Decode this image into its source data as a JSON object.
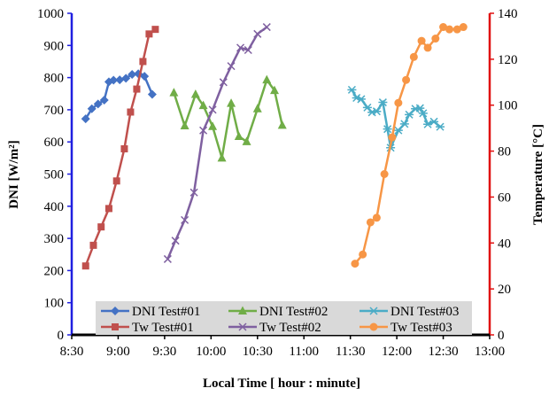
{
  "chart_data": {
    "type": "line",
    "title": "",
    "xlabel": "Local Time [ hour : minute]",
    "ylabel_left": "DNI [W/m²]",
    "ylabel_right": "Temperature  [°C]",
    "x_ticks": [
      "8:30",
      "9:00",
      "9:30",
      "10:00",
      "10:30",
      "11:00",
      "11:30",
      "12:00",
      "12:30",
      "13:00"
    ],
    "x_range": [
      "8:30",
      "13:00"
    ],
    "y_left_ticks": [
      "0",
      "100",
      "200",
      "300",
      "400",
      "500",
      "600",
      "700",
      "800",
      "900",
      "1000"
    ],
    "y_left_range": [
      0,
      1000
    ],
    "y_right_ticks": [
      "0",
      "20",
      "40",
      "60",
      "80",
      "100",
      "120",
      "140"
    ],
    "y_right_range": [
      0,
      140
    ],
    "grid": false,
    "legend_position": "bottom-center",
    "axis_colors": {
      "left": "#1f1fe0",
      "right": "#e01010",
      "bottom": "#000000"
    },
    "series": [
      {
        "name": "DNI Test#01",
        "axis": "left",
        "color": "#4472c4",
        "marker": "diamond",
        "points": [
          [
            "8:39",
            672
          ],
          [
            "8:43",
            703
          ],
          [
            "8:47",
            718
          ],
          [
            "8:51",
            730
          ],
          [
            "8:54",
            787
          ],
          [
            "8:57",
            792
          ],
          [
            "9:01",
            793
          ],
          [
            "9:05",
            798
          ],
          [
            "9:09",
            810
          ],
          [
            "9:13",
            812
          ],
          [
            "9:17",
            804
          ],
          [
            "9:22",
            748
          ]
        ]
      },
      {
        "name": "DNI Test#02",
        "axis": "left",
        "color": "#70ad47",
        "marker": "triangle",
        "points": [
          [
            "9:36",
            753
          ],
          [
            "9:43",
            650
          ],
          [
            "9:50",
            748
          ],
          [
            "9:55",
            713
          ],
          [
            "10:01",
            648
          ],
          [
            "10:07",
            550
          ],
          [
            "10:13",
            720
          ],
          [
            "10:18",
            617
          ],
          [
            "10:23",
            601
          ],
          [
            "10:30",
            703
          ],
          [
            "10:36",
            793
          ],
          [
            "10:41",
            760
          ],
          [
            "10:46",
            652
          ]
        ]
      },
      {
        "name": "DNI Test#03",
        "axis": "left",
        "color": "#4bacc6",
        "marker": "star",
        "points": [
          [
            "11:31",
            762
          ],
          [
            "11:34",
            737
          ],
          [
            "11:37",
            733
          ],
          [
            "11:41",
            707
          ],
          [
            "11:44",
            692
          ],
          [
            "11:47",
            695
          ],
          [
            "11:51",
            723
          ],
          [
            "11:54",
            640
          ],
          [
            "11:56",
            582
          ],
          [
            "12:01",
            636
          ],
          [
            "12:05",
            656
          ],
          [
            "12:08",
            685
          ],
          [
            "12:12",
            703
          ],
          [
            "12:15",
            705
          ],
          [
            "12:17",
            689
          ],
          [
            "12:20",
            655
          ],
          [
            "12:24",
            663
          ],
          [
            "12:28",
            647
          ]
        ]
      },
      {
        "name": "Tw Test#01",
        "axis": "right",
        "color": "#c0504d",
        "marker": "square",
        "points": [
          [
            "8:39",
            30
          ],
          [
            "8:44",
            39
          ],
          [
            "8:49",
            47
          ],
          [
            "8:54",
            55
          ],
          [
            "8:59",
            67
          ],
          [
            "9:04",
            81
          ],
          [
            "9:08",
            97
          ],
          [
            "9:12",
            107
          ],
          [
            "9:16",
            119
          ],
          [
            "9:20",
            131
          ],
          [
            "9:24",
            133
          ]
        ]
      },
      {
        "name": "Tw Test#02",
        "axis": "right",
        "color": "#7f60a0",
        "marker": "x",
        "points": [
          [
            "9:32",
            33
          ],
          [
            "9:37",
            41
          ],
          [
            "9:43",
            50
          ],
          [
            "9:49",
            62
          ],
          [
            "9:55",
            89
          ],
          [
            "10:01",
            98
          ],
          [
            "10:08",
            110
          ],
          [
            "10:13",
            117
          ],
          [
            "10:19",
            125
          ],
          [
            "10:24",
            124
          ],
          [
            "10:30",
            131
          ],
          [
            "10:36",
            134
          ]
        ]
      },
      {
        "name": "Tw Test#03",
        "axis": "right",
        "color": "#f79646",
        "marker": "circle",
        "points": [
          [
            "11:33",
            31
          ],
          [
            "11:38",
            35
          ],
          [
            "11:43",
            49
          ],
          [
            "11:47",
            51
          ],
          [
            "11:52",
            70
          ],
          [
            "11:57",
            86
          ],
          [
            "12:01",
            101
          ],
          [
            "12:06",
            111
          ],
          [
            "12:11",
            121
          ],
          [
            "12:16",
            128
          ],
          [
            "12:20",
            125
          ],
          [
            "12:25",
            129
          ],
          [
            "12:30",
            134
          ],
          [
            "12:34",
            133
          ],
          [
            "12:39",
            133
          ],
          [
            "12:43",
            134
          ]
        ]
      }
    ]
  }
}
